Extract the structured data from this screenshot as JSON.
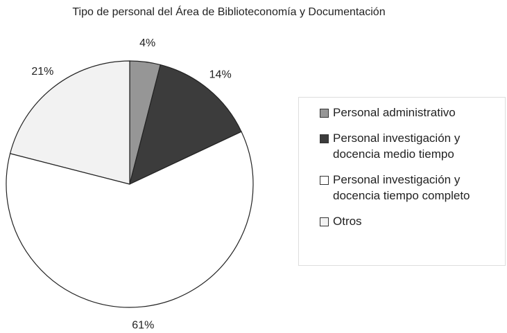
{
  "chart_data": {
    "type": "pie",
    "title": "Tipo de personal del Área de Biblioteconomía y Documentación",
    "categories": [
      "Personal administrativo",
      "Personal investigación y docencia medio tiempo",
      "Personal investigación y docencia tiempo completo",
      "Otros"
    ],
    "values": [
      4,
      14,
      61,
      21
    ],
    "value_labels": [
      "4%",
      "14%",
      "61%",
      "21%"
    ],
    "colors": [
      "#969696",
      "#3c3c3c",
      "#ffffff",
      "#f2f2f2"
    ],
    "legend": "right"
  }
}
